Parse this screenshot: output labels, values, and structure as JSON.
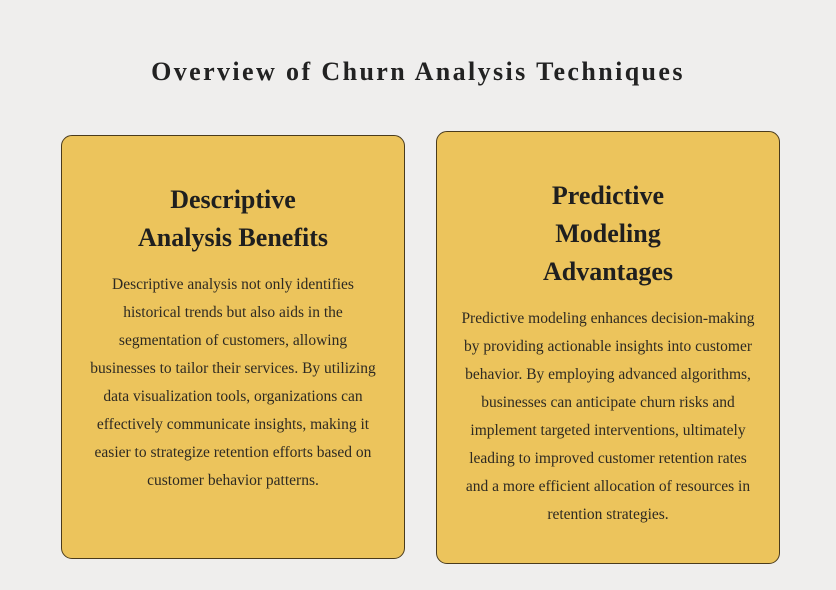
{
  "page": {
    "title": "Overview of Churn Analysis Techniques"
  },
  "colors": {
    "background": "#efeeed",
    "card_fill": "#ecc45c",
    "card_border": "#4a3b1c",
    "text": "#222222"
  },
  "cards": [
    {
      "title": "Descriptive Analysis Benefits",
      "body": "Descriptive analysis not only identifies historical trends but also aids in the segmentation of customers, allowing businesses to tailor their services. By utilizing data visualization tools, organizations can effectively communicate insights, making it easier to strategize retention efforts based on customer behavior patterns."
    },
    {
      "title": "Predictive Modeling Advantages",
      "body": "Predictive modeling enhances decision-making by providing actionable insights into customer behavior. By employing advanced algorithms, businesses can anticipate churn risks and implement targeted interventions, ultimately leading to improved customer retention rates and a more efficient allocation of resources in retention strategies."
    }
  ]
}
